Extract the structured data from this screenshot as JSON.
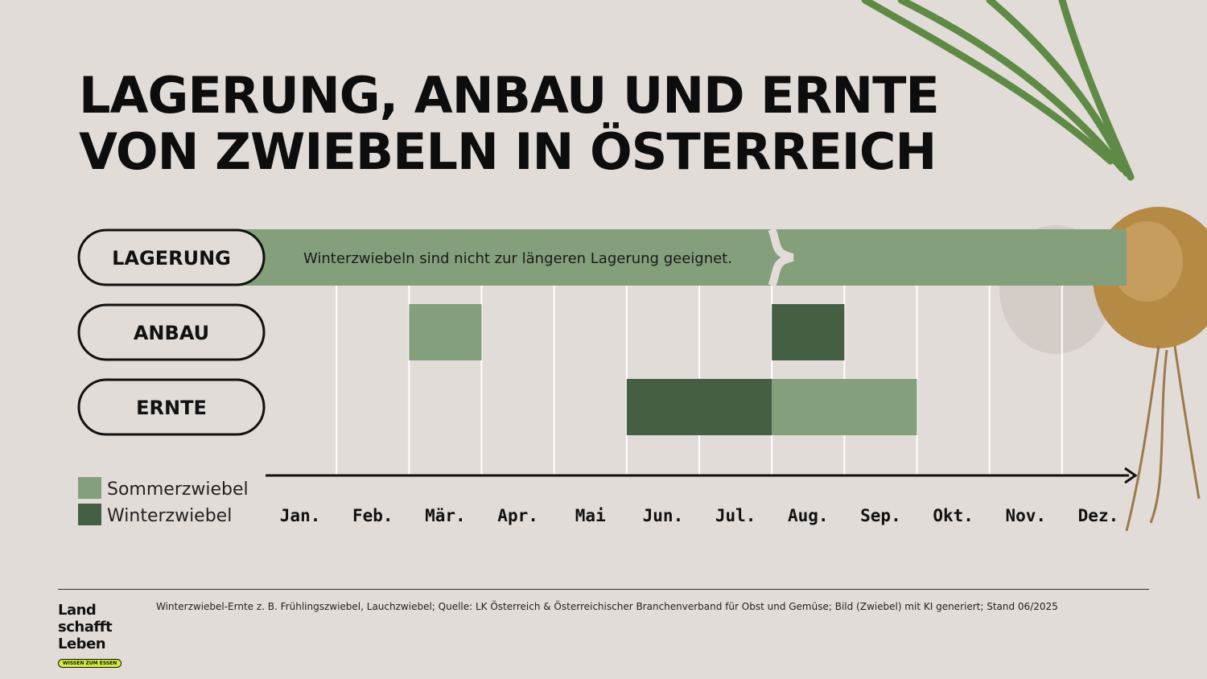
{
  "header": {
    "title_line_1": "LAGERUNG, ANBAU UND ERNTE",
    "title_line_2": "VON ZWIEBELN IN ÖSTERREICH"
  },
  "chart_data": {
    "type": "gantt",
    "categories": [
      "Jan.",
      "Feb.",
      "Mär.",
      "Apr.",
      "Mai",
      "Jun.",
      "Jul.",
      "Aug.",
      "Sep.",
      "Okt.",
      "Nov.",
      "Dez."
    ],
    "rows": [
      {
        "key": "lagerung",
        "label": "LAGERUNG"
      },
      {
        "key": "anbau",
        "label": "ANBAU"
      },
      {
        "key": "ernte",
        "label": "ERNTE"
      }
    ],
    "series": [
      {
        "name": "Sommerzwiebel",
        "color": "#849f7b",
        "bars": [
          {
            "row": "anbau",
            "start_month": 3,
            "end_month": 3
          },
          {
            "row": "ernte",
            "start_month": 8,
            "end_month": 9
          }
        ]
      },
      {
        "name": "Winterzwiebel",
        "color": "#445f44",
        "bars": [
          {
            "row": "anbau",
            "start_month": 8,
            "end_month": 8
          },
          {
            "row": "ernte",
            "start_month": 6,
            "end_month": 7
          }
        ]
      }
    ],
    "storage": {
      "row": "lagerung",
      "color": "#849f7b",
      "note": "Winterzwiebeln sind nicht zur längeren Lagerung geeignet.",
      "break_after_month": 7
    },
    "legend": "bottom-left",
    "grid": true
  },
  "footer": {
    "source": "Winterzwiebel-Ernte z. B. Frühlingszwiebel, Lauchzwiebel; Quelle: LK Österreich & Österreichischer Branchenverband für Obst und Gemüse; Bild (Zwiebel) mit KI generiert; Stand 06/2025"
  },
  "logo": {
    "line_1": "Land",
    "line_2": "schafft",
    "line_3": "Leben",
    "tagline": "WISSEN ZUM ESSEN"
  }
}
